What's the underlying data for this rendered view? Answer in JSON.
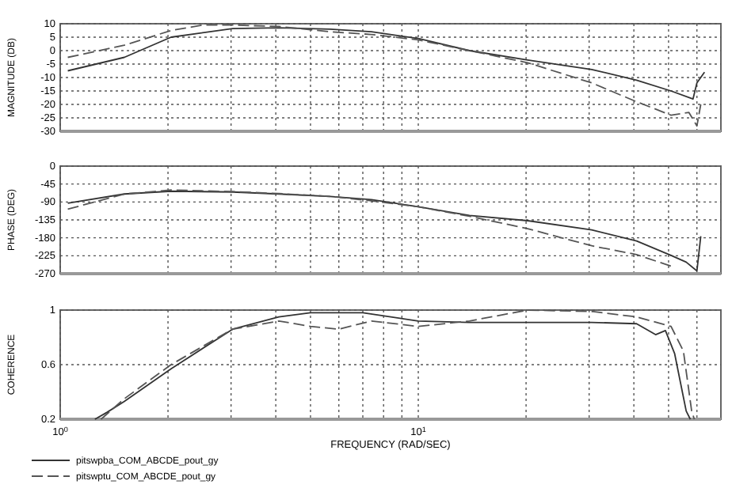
{
  "chart_data": [
    {
      "type": "line",
      "ylabel": "MAGNITUDE (DB)",
      "log": "x",
      "grid": true,
      "tick_labels": "y",
      "xlim": [
        1,
        70
      ],
      "xticks": [
        {
          "value": 1,
          "label": null
        },
        {
          "value": 2,
          "label": null
        },
        {
          "value": 3,
          "label": null
        },
        {
          "value": 4,
          "label": null
        },
        {
          "value": 5,
          "label": null
        },
        {
          "value": 6,
          "label": null
        },
        {
          "value": 7,
          "label": null
        },
        {
          "value": 8,
          "label": null
        },
        {
          "value": 9,
          "label": null
        },
        {
          "value": 10,
          "label": null
        },
        {
          "value": 20,
          "label": null
        },
        {
          "value": 30,
          "label": null
        },
        {
          "value": 40,
          "label": null
        },
        {
          "value": 50,
          "label": null
        },
        {
          "value": 60,
          "label": null
        }
      ],
      "ylim": [
        -30,
        10
      ],
      "yticks": [
        -30,
        -25,
        -20,
        -15,
        -10,
        -5,
        0,
        5,
        10
      ],
      "series": [
        {
          "color": "#333333",
          "line_style": "solid",
          "x": [
            1.05,
            1.51,
            2.04,
            3.03,
            4.08,
            5.67,
            7.4,
            10,
            13.9,
            20.2,
            30.5,
            40.7,
            50.8,
            58.5,
            60,
            63
          ],
          "values": [
            -7.5,
            -2.5,
            5,
            8.2,
            8.5,
            8,
            7,
            4.5,
            0,
            -3.5,
            -7,
            -11,
            -15,
            -18,
            -12,
            -8
          ]
        },
        {
          "color": "#555555",
          "line_style": "dashed",
          "x": [
            1.05,
            1.51,
            2.04,
            2.5,
            3.03,
            4.08,
            5.67,
            7.4,
            10,
            13.9,
            20.2,
            30.5,
            40.7,
            50.8,
            57,
            60,
            61.5
          ],
          "values": [
            -2.5,
            2,
            7.5,
            9.5,
            9.5,
            9,
            7,
            6,
            4,
            0,
            -4.5,
            -12,
            -19,
            -24,
            -23,
            -28,
            -20
          ]
        }
      ]
    },
    {
      "type": "line",
      "ylabel": "PHASE (DEG)",
      "log": "x",
      "grid": true,
      "tick_labels": "y",
      "xlim": [
        1,
        70
      ],
      "xticks": [
        {
          "value": 1,
          "label": null
        },
        {
          "value": 2,
          "label": null
        },
        {
          "value": 3,
          "label": null
        },
        {
          "value": 4,
          "label": null
        },
        {
          "value": 5,
          "label": null
        },
        {
          "value": 6,
          "label": null
        },
        {
          "value": 7,
          "label": null
        },
        {
          "value": 8,
          "label": null
        },
        {
          "value": 9,
          "label": null
        },
        {
          "value": 10,
          "label": null
        },
        {
          "value": 20,
          "label": null
        },
        {
          "value": 30,
          "label": null
        },
        {
          "value": 40,
          "label": null
        },
        {
          "value": 50,
          "label": null
        },
        {
          "value": 60,
          "label": null
        }
      ],
      "ylim": [
        -270,
        0
      ],
      "yticks": [
        -270,
        -225,
        -180,
        -135,
        -90,
        -45,
        0
      ],
      "series": [
        {
          "color": "#333333",
          "line_style": "solid",
          "x": [
            1.05,
            1.51,
            2.04,
            3.03,
            4.08,
            5.67,
            7.4,
            10,
            13.9,
            20.2,
            30.5,
            40.7,
            50.8,
            56,
            60,
            61.5
          ],
          "values": [
            -93,
            -70,
            -63,
            -65,
            -70,
            -76,
            -84,
            -102,
            -124,
            -137,
            -160,
            -188,
            -224,
            -241,
            -263,
            -176
          ]
        },
        {
          "color": "#555555",
          "line_style": "dashed",
          "x": [
            1.05,
            1.51,
            2.04,
            3.03,
            4.08,
            5.67,
            7.4,
            10,
            13.9,
            20.2,
            30.5,
            40.7,
            50.8
          ],
          "values": [
            -108,
            -70,
            -60,
            -64,
            -69,
            -76,
            -87,
            -102,
            -126,
            -157,
            -200,
            -222,
            -251
          ]
        }
      ]
    },
    {
      "type": "line",
      "ylabel": "COHERENCE",
      "xlabel": "FREQUENCY (RAD/SEC)",
      "log": "x",
      "grid": true,
      "legend": "bottom left",
      "xlim": [
        1,
        70
      ],
      "xticks": [
        {
          "value": 1,
          "label": "10$^{0}$"
        },
        {
          "value": 2,
          "label": null
        },
        {
          "value": 3,
          "label": null
        },
        {
          "value": 4,
          "label": null
        },
        {
          "value": 5,
          "label": null
        },
        {
          "value": 6,
          "label": null
        },
        {
          "value": 7,
          "label": null
        },
        {
          "value": 8,
          "label": null
        },
        {
          "value": 9,
          "label": null
        },
        {
          "value": 10,
          "label": "10$^{1}$"
        },
        {
          "value": 20,
          "label": null
        },
        {
          "value": 30,
          "label": null
        },
        {
          "value": 40,
          "label": null
        },
        {
          "value": 50,
          "label": null
        },
        {
          "value": 60,
          "label": null
        }
      ],
      "ylim": [
        0.2,
        1
      ],
      "yticks": [
        0.2,
        0.6,
        1
      ],
      "series": [
        {
          "name": "pitswpba_COM_ABCDE_pout_gy",
          "color": "#333333",
          "line_style": "solid",
          "x": [
            1.25,
            1.35,
            1.51,
            2.04,
            3.03,
            4.08,
            5,
            7,
            10,
            13.9,
            20.2,
            30.5,
            40.7,
            46,
            49,
            52,
            56,
            57.5
          ],
          "values": [
            0.2,
            0.25,
            0.33,
            0.57,
            0.86,
            0.95,
            0.98,
            0.98,
            0.92,
            0.91,
            0.91,
            0.91,
            0.9,
            0.82,
            0.85,
            0.68,
            0.26,
            0.2
          ]
        },
        {
          "name": "pitswptu_COM_ABCDE_pout_gy",
          "color": "#555555",
          "line_style": "dashed",
          "x": [
            1.3,
            1.51,
            2.04,
            3.03,
            4.08,
            5,
            6,
            7.4,
            10,
            13.9,
            20.2,
            30.5,
            40.7,
            50.8,
            55,
            58,
            59
          ],
          "values": [
            0.2,
            0.35,
            0.6,
            0.86,
            0.92,
            0.88,
            0.86,
            0.92,
            0.88,
            0.92,
            1,
            0.99,
            0.95,
            0.88,
            0.7,
            0.26,
            0.2
          ]
        }
      ]
    }
  ]
}
